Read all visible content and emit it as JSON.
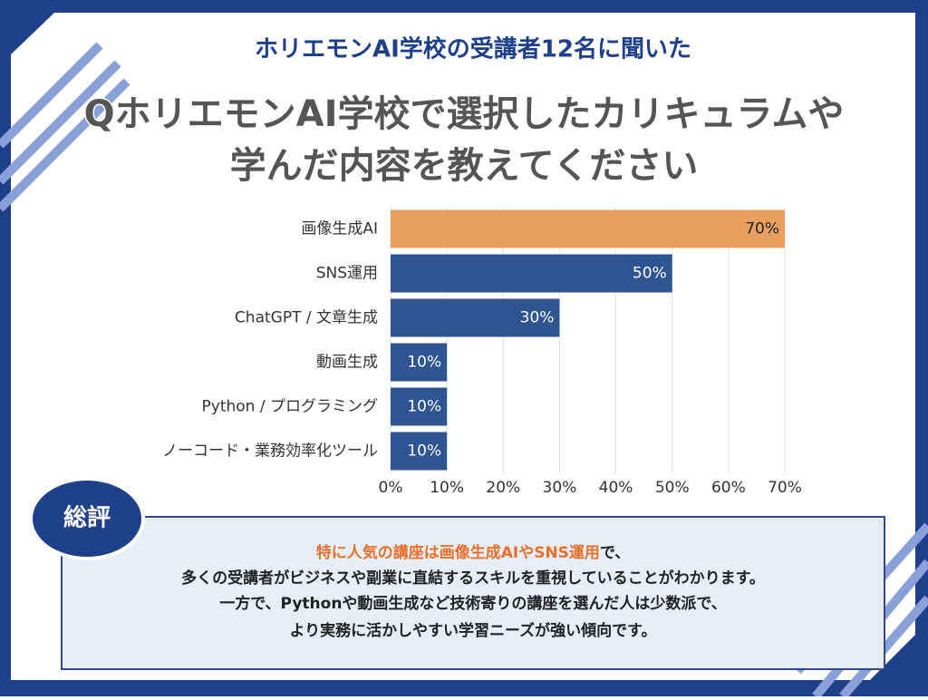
{
  "chart_data": {
    "type": "hbar",
    "subtitle": "ホリエモンAI学校の受講者12名に聞いた",
    "title_lines": [
      "QホリエモンAI学校で選択したカリキュラムや",
      "学んだ内容を教えてください"
    ],
    "categories": [
      "画像生成AI",
      "SNS運用",
      "ChatGPT / 文章生成",
      "動画生成",
      "Python / プログラミング",
      "ノーコード・業務効率化ツール"
    ],
    "values": [
      70,
      50,
      30,
      10,
      10,
      10
    ],
    "value_labels": [
      "70%",
      "50%",
      "30%",
      "10%",
      "10%",
      "10%"
    ],
    "colors": [
      "#e8a060",
      "#2e5590",
      "#2e5590",
      "#2e5590",
      "#2e5590",
      "#2e5590"
    ],
    "xlim": [
      0,
      70
    ],
    "xticks": [
      {
        "value": 0,
        "label": "0%"
      },
      {
        "value": 10,
        "label": "10%"
      },
      {
        "value": 20,
        "label": "20%"
      },
      {
        "value": 30,
        "label": "30%"
      },
      {
        "value": 40,
        "label": "40%"
      },
      {
        "value": 50,
        "label": "50%"
      },
      {
        "value": 60,
        "label": "60%"
      },
      {
        "value": 70,
        "label": "70%"
      }
    ],
    "grid": true
  },
  "summary": {
    "label": "総評",
    "highlight": "特に人気の講座は画像生成AIやSNS運用",
    "line1_rest": "で、",
    "lines": [
      "多くの受講者がビジネスや副業に直結するスキルを重視していることがわかります。",
      "一方で、Pythonや動画生成など技術寄りの講座を選んだ人は少数派で、",
      "より実務に活かしやすい学習ニーズが強い傾向です。"
    ]
  }
}
